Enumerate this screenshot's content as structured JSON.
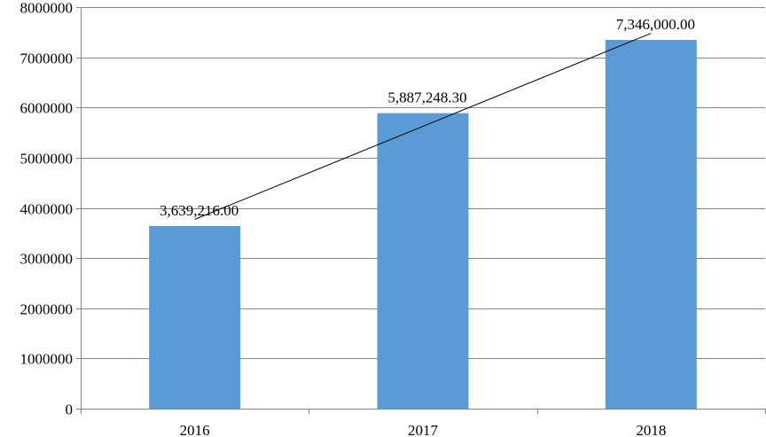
{
  "chart_data": {
    "type": "bar",
    "categories": [
      "2016",
      "2017",
      "2018"
    ],
    "values": [
      3639216.0,
      5887248.3,
      7346000.0
    ],
    "data_labels": [
      "3,639,216.00",
      "5,887,248.30",
      "7,346,000.00"
    ],
    "title": "",
    "xlabel": "",
    "ylabel": "",
    "ylim": [
      0,
      8000000
    ],
    "yticks": [
      0,
      1000000,
      2000000,
      3000000,
      4000000,
      5000000,
      6000000,
      7000000,
      8000000
    ],
    "ytick_labels": [
      "0",
      "1000000",
      "2000000",
      "3000000",
      "4000000",
      "5000000",
      "6000000",
      "7000000",
      "8000000"
    ],
    "grid": true,
    "legend": "none",
    "trendline": "linear",
    "bar_color": "#5b9bd5",
    "trendline_color": "#000000",
    "grid_color": "#868686"
  }
}
